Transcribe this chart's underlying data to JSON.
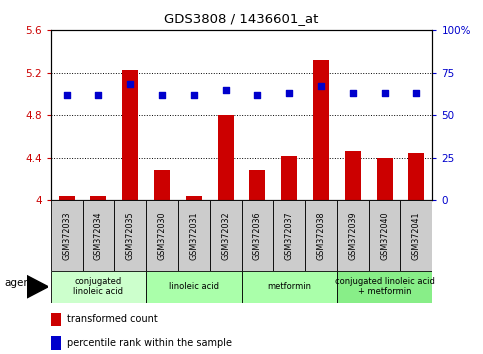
{
  "title": "GDS3808 / 1436601_at",
  "samples": [
    "GSM372033",
    "GSM372034",
    "GSM372035",
    "GSM372030",
    "GSM372031",
    "GSM372032",
    "GSM372036",
    "GSM372037",
    "GSM372038",
    "GSM372039",
    "GSM372040",
    "GSM372041"
  ],
  "bar_values": [
    4.04,
    4.04,
    5.22,
    4.28,
    4.04,
    4.8,
    4.28,
    4.41,
    5.32,
    4.46,
    4.4,
    4.44
  ],
  "dot_values": [
    62,
    62,
    68,
    62,
    62,
    65,
    62,
    63,
    67,
    63,
    63,
    63
  ],
  "bar_color": "#cc0000",
  "dot_color": "#0000cc",
  "ylim_left": [
    4.0,
    5.6
  ],
  "ylim_right": [
    0,
    100
  ],
  "yticks_left": [
    4.0,
    4.4,
    4.8,
    5.2,
    5.6
  ],
  "yticks_right": [
    0,
    25,
    50,
    75,
    100
  ],
  "ytick_labels_left": [
    "4",
    "4.4",
    "4.8",
    "5.2",
    "5.6"
  ],
  "ytick_labels_right": [
    "0",
    "25",
    "50",
    "75",
    "100%"
  ],
  "grid_values": [
    4.4,
    4.8,
    5.2
  ],
  "agents": [
    {
      "label": "conjugated\nlinoleic acid",
      "start": 0,
      "end": 3
    },
    {
      "label": "linoleic acid",
      "start": 3,
      "end": 6
    },
    {
      "label": "metformin",
      "start": 6,
      "end": 9
    },
    {
      "label": "conjugated linoleic acid\n+ metformin",
      "start": 9,
      "end": 12
    }
  ],
  "agent_colors": [
    "#ccffcc",
    "#aaffaa",
    "#aaffaa",
    "#88ee88"
  ],
  "legend_bar_label": "transformed count",
  "legend_dot_label": "percentile rank within the sample",
  "agent_label": "agent",
  "background_color": "#ffffff",
  "plot_bg_color": "#ffffff",
  "sample_box_color": "#cccccc",
  "bar_bottom": 4.0
}
